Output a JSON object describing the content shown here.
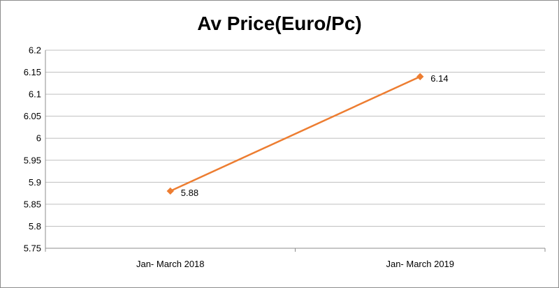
{
  "chart_data": {
    "type": "line",
    "title": "Av Price(Euro/Pc)",
    "xlabel": "",
    "ylabel": "",
    "categories": [
      "Jan- March 2018",
      "Jan- March 2019"
    ],
    "series": [
      {
        "values": [
          5.88,
          6.14
        ],
        "data_labels": [
          "5.88",
          "6.14"
        ],
        "color": "#ed7d31",
        "marker": "diamond"
      }
    ],
    "ylim": [
      5.75,
      6.2
    ],
    "yticks": [
      5.75,
      5.8,
      5.85,
      5.9,
      5.95,
      6,
      6.05,
      6.1,
      6.15,
      6.2
    ],
    "ytick_labels": [
      "5.75",
      "5.8",
      "5.85",
      "5.9",
      "5.95",
      "6",
      "6.05",
      "6.1",
      "6.15",
      "6.2"
    ],
    "grid": true,
    "legend": "none"
  },
  "colors": {
    "gridline": "#bfbfbf",
    "axis": "#8c8c8c",
    "border": "#8c8c8c"
  }
}
